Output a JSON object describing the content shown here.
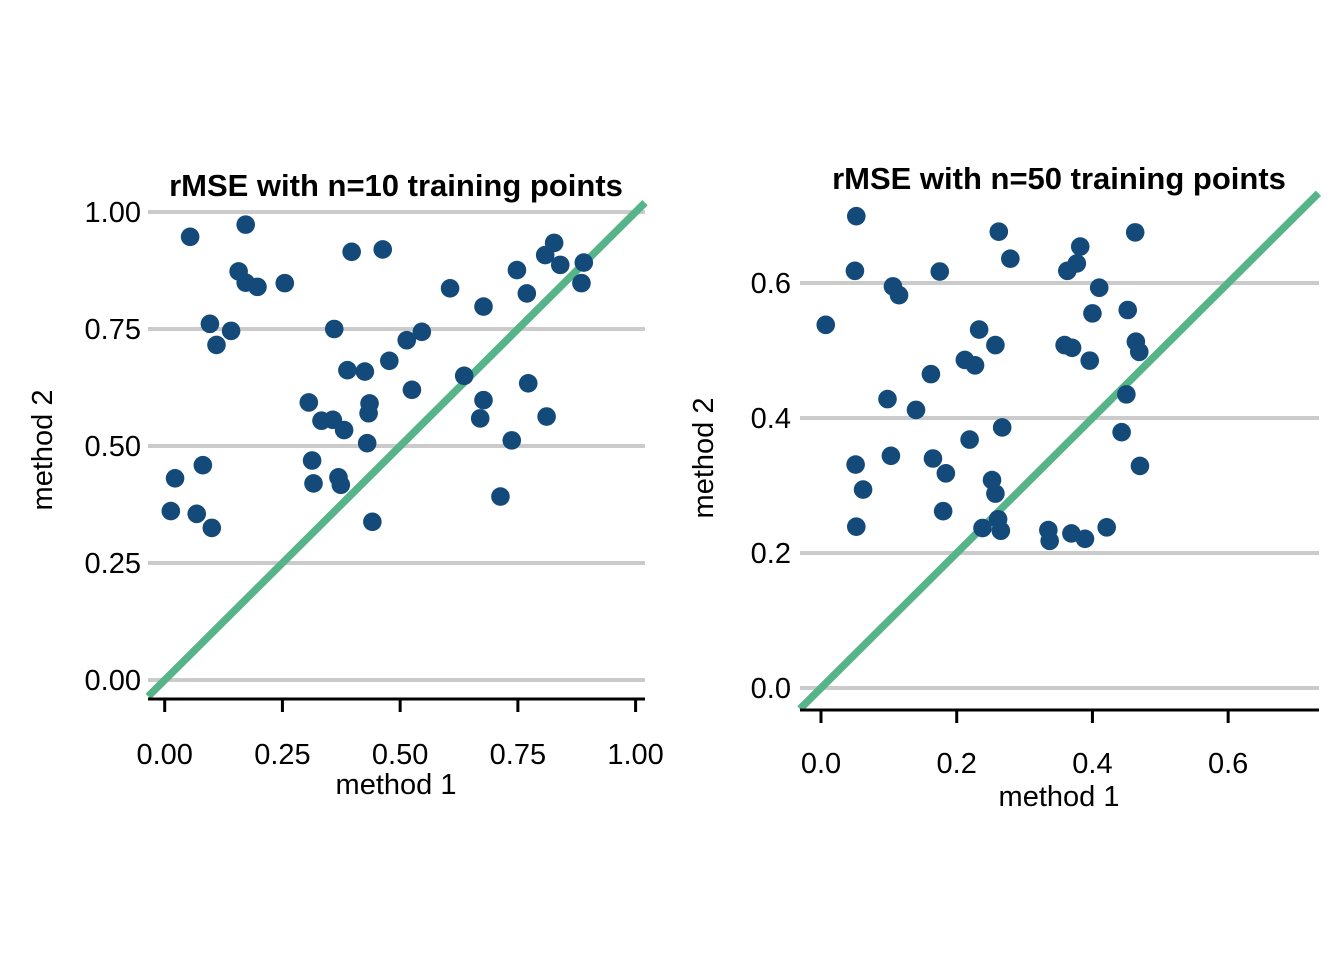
{
  "figure": {
    "background": "#ffffff",
    "point_color": "#134a7a",
    "identity_line_color": "#57b489",
    "gridline_color": "#cbcbcb",
    "axis_color": "#000000",
    "text_color": "#000000"
  },
  "chart_data": [
    {
      "type": "scatter",
      "title": "rMSE with n=10 training points",
      "xlabel": "method 1",
      "ylabel": "method 2",
      "xlim": [
        -0.035,
        1.02
      ],
      "ylim": [
        -0.04,
        1.025
      ],
      "xticks": [
        0,
        0.25,
        0.5,
        0.75,
        1.0
      ],
      "xtick_labels": [
        "0.00",
        "0.25",
        "0.50",
        "0.75",
        "1.00"
      ],
      "yticks": [
        0,
        0.25,
        0.5,
        0.75,
        1.0
      ],
      "ytick_labels": [
        "0.00",
        "0.25",
        "0.50",
        "0.75",
        "1.00"
      ],
      "grid": "horizontal",
      "legend": "none",
      "identity_line": true,
      "points": [
        [
          0.054,
          0.947
        ],
        [
          0.172,
          0.973
        ],
        [
          0.157,
          0.873
        ],
        [
          0.172,
          0.849
        ],
        [
          0.197,
          0.84
        ],
        [
          0.255,
          0.848
        ],
        [
          0.397,
          0.915
        ],
        [
          0.463,
          0.92
        ],
        [
          0.096,
          0.761
        ],
        [
          0.141,
          0.746
        ],
        [
          0.11,
          0.716
        ],
        [
          0.36,
          0.75
        ],
        [
          0.514,
          0.726
        ],
        [
          0.546,
          0.744
        ],
        [
          0.477,
          0.682
        ],
        [
          0.425,
          0.659
        ],
        [
          0.388,
          0.662
        ],
        [
          0.606,
          0.837
        ],
        [
          0.677,
          0.798
        ],
        [
          0.748,
          0.876
        ],
        [
          0.769,
          0.826
        ],
        [
          0.808,
          0.908
        ],
        [
          0.827,
          0.934
        ],
        [
          0.84,
          0.887
        ],
        [
          0.89,
          0.892
        ],
        [
          0.885,
          0.848
        ],
        [
          0.636,
          0.65
        ],
        [
          0.525,
          0.62
        ],
        [
          0.677,
          0.598
        ],
        [
          0.67,
          0.559
        ],
        [
          0.772,
          0.634
        ],
        [
          0.811,
          0.563
        ],
        [
          0.737,
          0.512
        ],
        [
          0.306,
          0.593
        ],
        [
          0.333,
          0.554
        ],
        [
          0.357,
          0.556
        ],
        [
          0.381,
          0.534
        ],
        [
          0.435,
          0.591
        ],
        [
          0.433,
          0.57
        ],
        [
          0.43,
          0.506
        ],
        [
          0.313,
          0.469
        ],
        [
          0.316,
          0.42
        ],
        [
          0.369,
          0.433
        ],
        [
          0.374,
          0.417
        ],
        [
          0.713,
          0.392
        ],
        [
          0.022,
          0.431
        ],
        [
          0.081,
          0.459
        ],
        [
          0.013,
          0.361
        ],
        [
          0.068,
          0.355
        ],
        [
          0.1,
          0.325
        ],
        [
          0.441,
          0.338
        ]
      ]
    },
    {
      "type": "scatter",
      "title": "rMSE with n=50 training points",
      "xlabel": "method 1",
      "ylabel": "method 2",
      "xlim": [
        -0.031,
        0.735
      ],
      "ylim": [
        -0.033,
        0.733
      ],
      "xticks": [
        0,
        0.2,
        0.4,
        0.6
      ],
      "xtick_labels": [
        "0.0",
        "0.2",
        "0.4",
        "0.6"
      ],
      "yticks": [
        0,
        0.2,
        0.4,
        0.6
      ],
      "ytick_labels": [
        "0.0",
        "0.2",
        "0.4",
        "0.6"
      ],
      "grid": "horizontal",
      "legend": "none",
      "identity_line": true,
      "points": [
        [
          0.052,
          0.699
        ],
        [
          0.262,
          0.676
        ],
        [
          0.463,
          0.675
        ],
        [
          0.382,
          0.654
        ],
        [
          0.279,
          0.636
        ],
        [
          0.377,
          0.629
        ],
        [
          0.363,
          0.618
        ],
        [
          0.05,
          0.618
        ],
        [
          0.175,
          0.617
        ],
        [
          0.106,
          0.595
        ],
        [
          0.115,
          0.582
        ],
        [
          0.41,
          0.593
        ],
        [
          0.4,
          0.555
        ],
        [
          0.452,
          0.56
        ],
        [
          0.007,
          0.538
        ],
        [
          0.233,
          0.531
        ],
        [
          0.257,
          0.508
        ],
        [
          0.359,
          0.508
        ],
        [
          0.37,
          0.504
        ],
        [
          0.464,
          0.513
        ],
        [
          0.469,
          0.498
        ],
        [
          0.212,
          0.486
        ],
        [
          0.227,
          0.478
        ],
        [
          0.162,
          0.465
        ],
        [
          0.396,
          0.485
        ],
        [
          0.098,
          0.428
        ],
        [
          0.14,
          0.412
        ],
        [
          0.45,
          0.435
        ],
        [
          0.267,
          0.386
        ],
        [
          0.219,
          0.368
        ],
        [
          0.443,
          0.379
        ],
        [
          0.103,
          0.344
        ],
        [
          0.165,
          0.34
        ],
        [
          0.051,
          0.331
        ],
        [
          0.47,
          0.329
        ],
        [
          0.184,
          0.318
        ],
        [
          0.252,
          0.308
        ],
        [
          0.062,
          0.294
        ],
        [
          0.257,
          0.288
        ],
        [
          0.18,
          0.262
        ],
        [
          0.261,
          0.25
        ],
        [
          0.238,
          0.237
        ],
        [
          0.265,
          0.233
        ],
        [
          0.335,
          0.234
        ],
        [
          0.337,
          0.218
        ],
        [
          0.369,
          0.229
        ],
        [
          0.389,
          0.221
        ],
        [
          0.421,
          0.238
        ],
        [
          0.052,
          0.239
        ]
      ]
    }
  ]
}
